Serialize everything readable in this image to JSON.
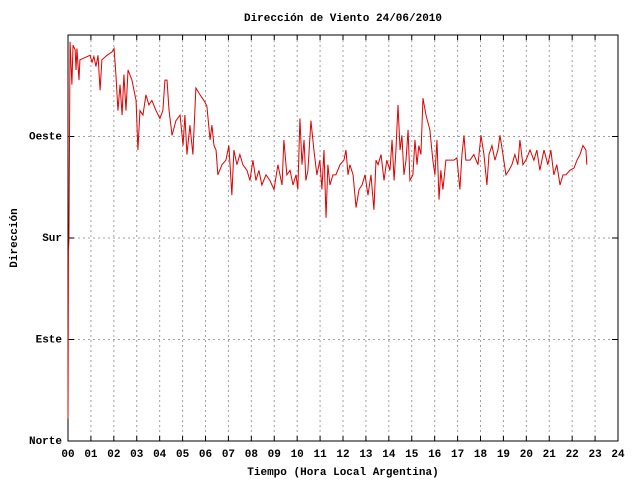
{
  "chart_data": {
    "type": "line",
    "title": "Dirección de Viento 24/06/2010",
    "xlabel": "Tiempo (Hora Local Argentina)",
    "ylabel": "Dirección",
    "color": "#e00000",
    "grid": true,
    "xlim": [
      0,
      24
    ],
    "xticks": [
      {
        "value": 0,
        "label": "00"
      },
      {
        "value": 1,
        "label": "01"
      },
      {
        "value": 2,
        "label": "02"
      },
      {
        "value": 3,
        "label": "03"
      },
      {
        "value": 4,
        "label": "04"
      },
      {
        "value": 5,
        "label": "05"
      },
      {
        "value": 6,
        "label": "06"
      },
      {
        "value": 7,
        "label": "07"
      },
      {
        "value": 8,
        "label": "08"
      },
      {
        "value": 9,
        "label": "09"
      },
      10,
      11,
      12,
      13,
      14,
      15,
      16,
      17,
      18,
      19,
      20,
      21,
      22,
      23,
      24
    ],
    "ylim": [
      0,
      360
    ],
    "yticks": [
      {
        "value": 0,
        "label": "Norte"
      },
      {
        "value": 90,
        "label": "Este"
      },
      {
        "value": 180,
        "label": "Sur"
      },
      {
        "value": 270,
        "label": "Oeste"
      }
    ],
    "x": [
      0,
      0.02,
      0.04,
      0.09,
      0.17,
      0.22,
      0.31,
      0.35,
      0.39,
      0.48,
      0.52,
      0.74,
      0.96,
      1.05,
      1.13,
      1.22,
      1.31,
      1.4,
      1.48,
      1.7,
      1.92,
      2.01,
      2.09,
      2.18,
      2.27,
      2.36,
      2.44,
      2.53,
      2.62,
      2.79,
      2.97,
      3.05,
      3.14,
      3.27,
      3.4,
      3.53,
      3.66,
      3.84,
      4.01,
      4.14,
      4.23,
      4.32,
      4.41,
      4.54,
      4.71,
      4.89,
      5.02,
      5.1,
      5.19,
      5.32,
      5.45,
      5.58,
      5.76,
      5.93,
      6.06,
      6.2,
      6.28,
      6.37,
      6.46,
      6.54,
      6.72,
      6.89,
      7.02,
      7.15,
      7.24,
      7.37,
      7.5,
      7.63,
      7.81,
      7.94,
      8.07,
      8.2,
      8.33,
      8.46,
      8.64,
      8.81,
      8.99,
      9.16,
      9.34,
      9.42,
      9.55,
      9.69,
      9.82,
      9.95,
      10.03,
      10.12,
      10.21,
      10.3,
      10.38,
      10.47,
      10.6,
      10.73,
      10.86,
      10.99,
      11.08,
      11.17,
      11.26,
      11.34,
      11.43,
      11.56,
      11.69,
      11.87,
      12.04,
      12.13,
      12.22,
      12.3,
      12.44,
      12.57,
      12.7,
      12.83,
      12.96,
      13.09,
      13.22,
      13.35,
      13.44,
      13.53,
      13.66,
      13.79,
      13.91,
      14.05,
      14.14,
      14.23,
      14.31,
      14.4,
      14.49,
      14.57,
      14.66,
      14.75,
      14.84,
      14.92,
      15.05,
      15.14,
      15.23,
      15.31,
      15.4,
      15.49,
      15.62,
      15.79,
      15.92,
      16.01,
      16.1,
      16.19,
      16.27,
      16.36,
      16.49,
      16.67,
      16.84,
      16.97,
      17.1,
      17.19,
      17.28,
      17.36,
      17.54,
      17.71,
      17.89,
      18.02,
      18.15,
      18.28,
      18.37,
      18.5,
      18.63,
      18.76,
      18.85,
      18.98,
      19.11,
      19.24,
      19.37,
      19.5,
      19.63,
      19.72,
      19.85,
      19.98,
      20.16,
      20.33,
      20.46,
      20.59,
      20.77,
      20.94,
      21.07,
      21.2,
      21.33,
      21.47,
      21.6,
      21.73,
      21.9,
      22.08,
      22.21,
      22.34,
      22.47,
      22.6,
      22.64
    ],
    "values": [
      20,
      169,
      178,
      354,
      316,
      351,
      347,
      329,
      348,
      320,
      338,
      340,
      342,
      336,
      341,
      332,
      342,
      311,
      338,
      342,
      345,
      348,
      325,
      293,
      316,
      289,
      325,
      293,
      329,
      320,
      302,
      258,
      293,
      289,
      307,
      298,
      302,
      293,
      286,
      293,
      320,
      320,
      293,
      271,
      284,
      289,
      262,
      289,
      254,
      280,
      254,
      313,
      307,
      302,
      297,
      267,
      280,
      262,
      258,
      236,
      245,
      249,
      262,
      218,
      258,
      245,
      254,
      245,
      240,
      231,
      249,
      231,
      240,
      227,
      236,
      231,
      223,
      245,
      227,
      267,
      236,
      240,
      227,
      236,
      223,
      286,
      245,
      267,
      231,
      240,
      284,
      258,
      236,
      249,
      223,
      258,
      198,
      245,
      227,
      236,
      236,
      245,
      249,
      258,
      236,
      245,
      236,
      207,
      223,
      227,
      236,
      218,
      236,
      205,
      249,
      245,
      254,
      231,
      249,
      240,
      267,
      231,
      258,
      298,
      258,
      271,
      236,
      249,
      276,
      231,
      236,
      267,
      245,
      262,
      254,
      304,
      289,
      276,
      249,
      236,
      267,
      214,
      240,
      223,
      249,
      249,
      249,
      251,
      223,
      254,
      271,
      249,
      249,
      254,
      245,
      271,
      254,
      227,
      254,
      262,
      249,
      258,
      271,
      254,
      236,
      240,
      245,
      254,
      245,
      267,
      245,
      249,
      258,
      249,
      258,
      240,
      258,
      245,
      258,
      236,
      245,
      227,
      236,
      236,
      240,
      242,
      249,
      254,
      262,
      258,
      245
    ]
  }
}
